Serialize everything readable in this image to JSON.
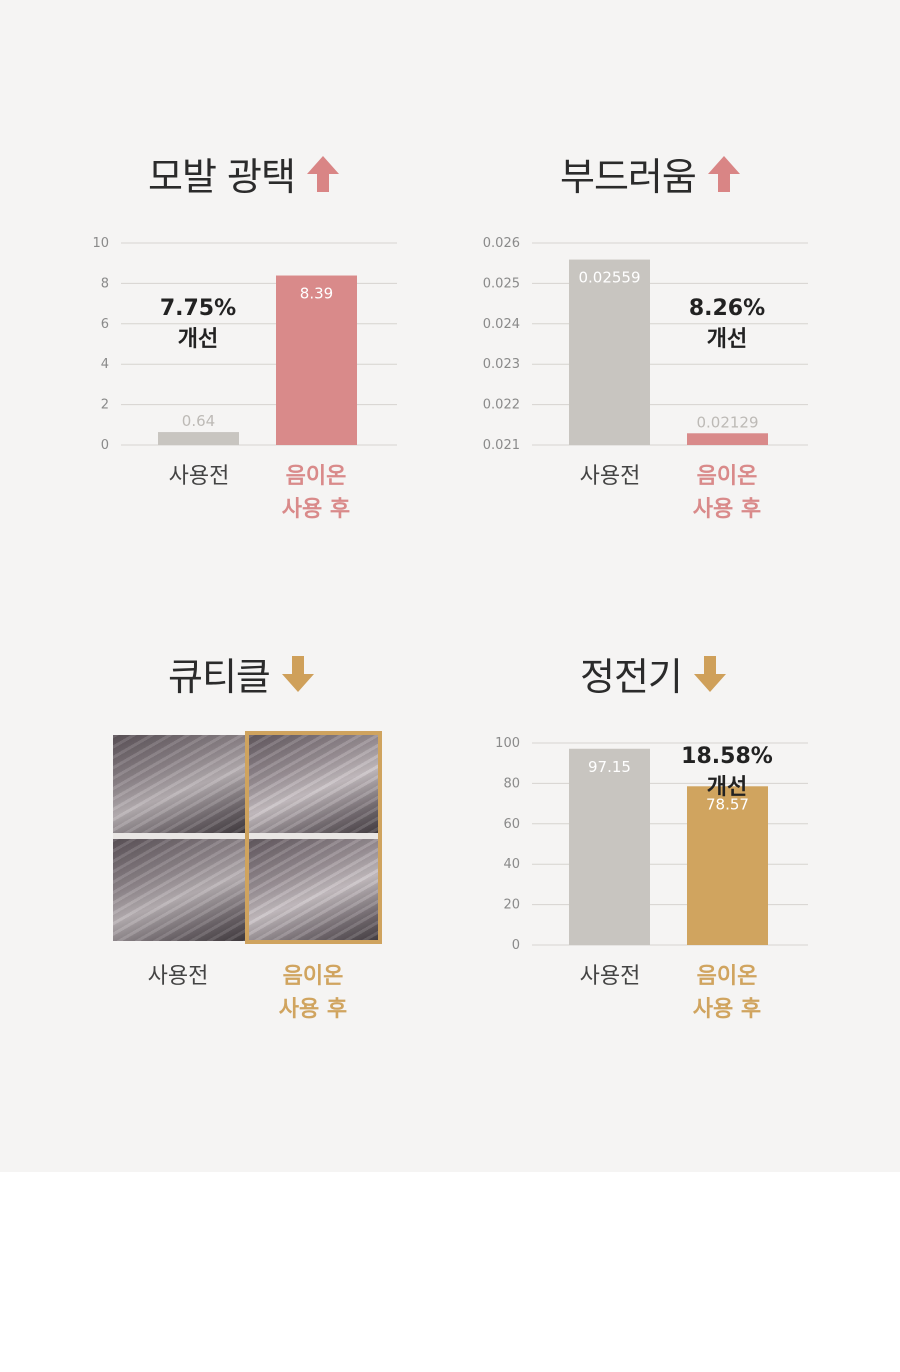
{
  "colors": {
    "before": "#c8c5c0",
    "after_pink": "#d98a8a",
    "after_gold": "#d0a45f",
    "arrow_up": "#d98585",
    "arrow_down": "#cfa05a"
  },
  "panels": [
    {
      "title": "모발 광택",
      "arrow_icon": "up-arrow-icon"
    },
    {
      "title": "부드러움",
      "arrow_icon": "up-arrow-icon"
    },
    {
      "title": "큐티클",
      "arrow_icon": "down-arrow-icon"
    },
    {
      "title": "정전기",
      "arrow_icon": "down-arrow-icon"
    }
  ],
  "categories": {
    "before": "사용전",
    "after_line1": "음이온",
    "after_line2": "사용 후"
  },
  "chart_data": [
    {
      "type": "bar",
      "title": "모발 광택",
      "categories": [
        "사용전",
        "음이온 사용 후"
      ],
      "values": [
        0.64,
        8.39
      ],
      "value_labels": [
        "0.64",
        "8.39"
      ],
      "ylim": [
        0,
        10
      ],
      "yticks": [
        0,
        2,
        4,
        6,
        8,
        10
      ],
      "ytick_labels": [
        "0",
        "2",
        "4",
        "6",
        "8",
        "10"
      ],
      "annotation": [
        "7.75%",
        "개선"
      ],
      "grid": true
    },
    {
      "type": "bar",
      "title": "부드러움",
      "categories": [
        "사용전",
        "음이온 사용 후"
      ],
      "values": [
        0.02559,
        0.02129
      ],
      "value_labels": [
        "0.02559",
        "0.02129"
      ],
      "ylim": [
        0.021,
        0.026
      ],
      "yticks": [
        0.021,
        0.022,
        0.023,
        0.024,
        0.025,
        0.026
      ],
      "ytick_labels": [
        "0.021",
        "0.022",
        "0.023",
        "0.024",
        "0.025",
        "0.026"
      ],
      "annotation": [
        "8.26%",
        "개선"
      ],
      "grid": true
    },
    {
      "type": "bar",
      "title": "정전기",
      "categories": [
        "사용전",
        "음이온 사용 후"
      ],
      "values": [
        97.15,
        78.57
      ],
      "value_labels": [
        "97.15",
        "78.57"
      ],
      "ylim": [
        0,
        100
      ],
      "yticks": [
        0,
        20,
        40,
        60,
        80,
        100
      ],
      "ytick_labels": [
        "0",
        "20",
        "40",
        "60",
        "80",
        "100"
      ],
      "annotation": [
        "18.58%",
        "개선"
      ],
      "grid": true
    }
  ]
}
